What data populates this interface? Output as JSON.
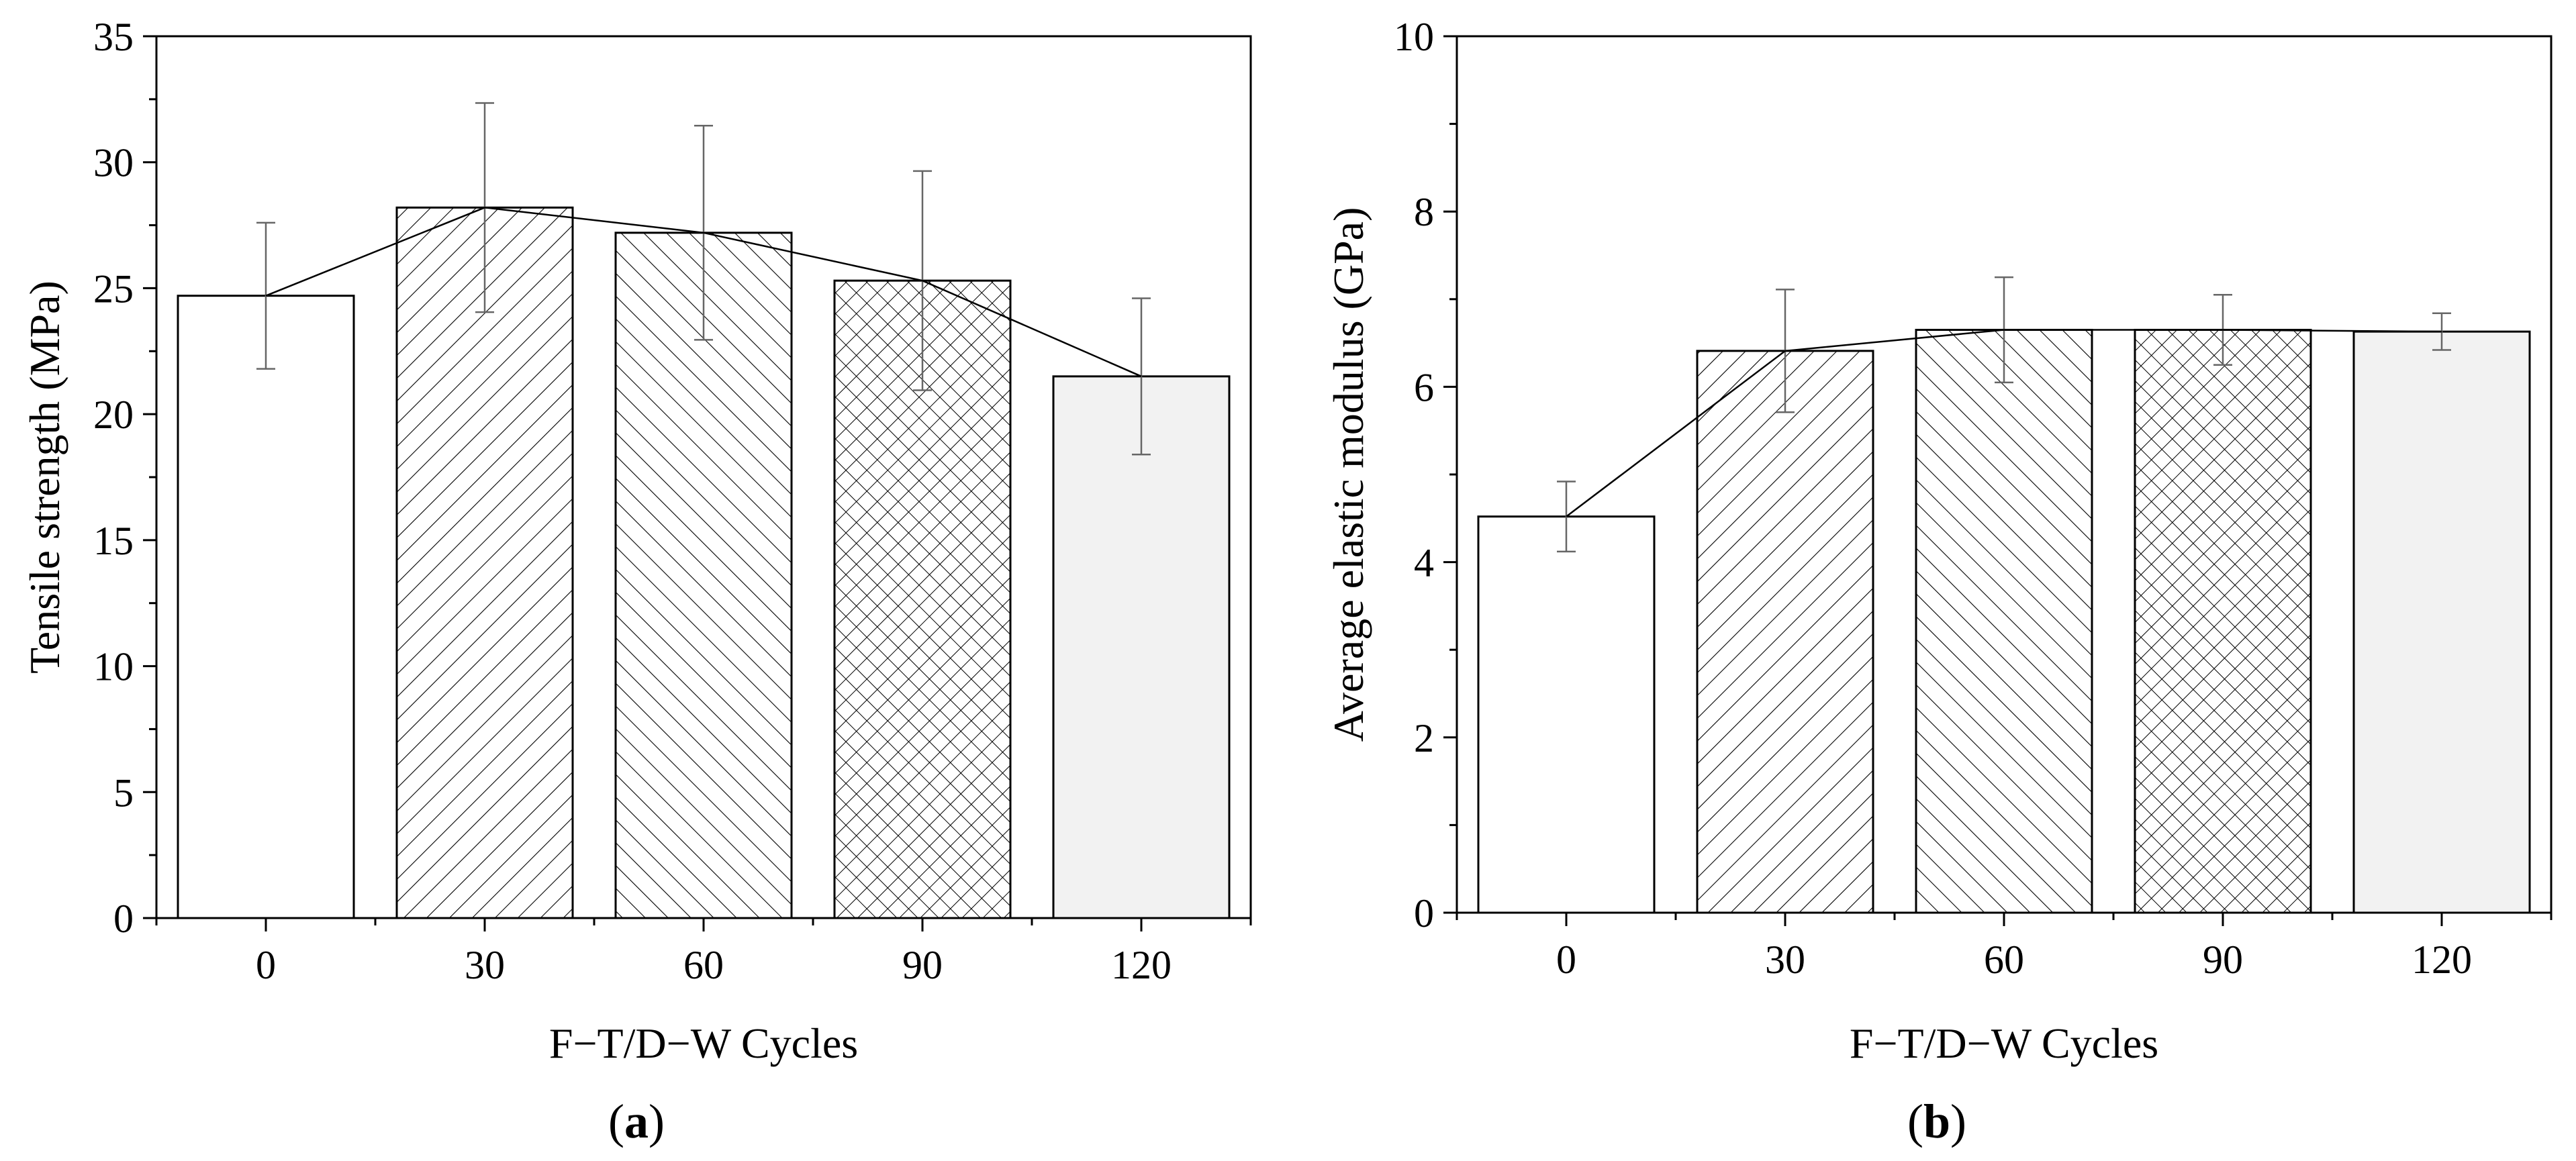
{
  "chart_data": [
    {
      "type": "bar",
      "panel_label": "a",
      "xlabel": "F−T/D−W Cycles",
      "ylabel": "Tensile strength (MPa)",
      "categories": [
        "0",
        "30",
        "60",
        "90",
        "120"
      ],
      "values": [
        24.7,
        28.2,
        27.2,
        25.3,
        21.5
      ],
      "errors": [
        2.9,
        4.15,
        4.25,
        4.35,
        3.1
      ],
      "patterns": [
        "none",
        "diag-right",
        "diag-left",
        "crosshatch",
        "light-fill"
      ],
      "ylim": [
        0,
        35
      ],
      "yticks": [
        0,
        5,
        10,
        15,
        20,
        25,
        30,
        35
      ],
      "ytick_labels": [
        "0",
        "5",
        "10",
        "15",
        "20",
        "25",
        "30",
        "35"
      ],
      "trend_line": true,
      "grid": false
    },
    {
      "type": "bar",
      "panel_label": "b",
      "xlabel": "F−T/D−W Cycles",
      "ylabel": "Average elastic modulus (GPa)",
      "categories": [
        "0",
        "30",
        "60",
        "90",
        "120"
      ],
      "values": [
        4.52,
        6.41,
        6.65,
        6.65,
        6.63
      ],
      "errors": [
        0.4,
        0.7,
        0.6,
        0.4,
        0.21
      ],
      "patterns": [
        "none",
        "diag-right",
        "diag-left",
        "crosshatch",
        "light-fill"
      ],
      "ylim": [
        0,
        10
      ],
      "yticks": [
        0,
        2,
        4,
        6,
        8,
        10
      ],
      "ytick_labels": [
        "0",
        "2",
        "4",
        "6",
        "8",
        "10"
      ],
      "trend_line": true,
      "grid": false
    }
  ],
  "colors": {
    "axis": "#000000",
    "bar_fill": "#ffffff",
    "light_fill": "#f2f2f2",
    "hatch": "#000000",
    "error_bar": "#666666",
    "trend_line": "#000000"
  }
}
